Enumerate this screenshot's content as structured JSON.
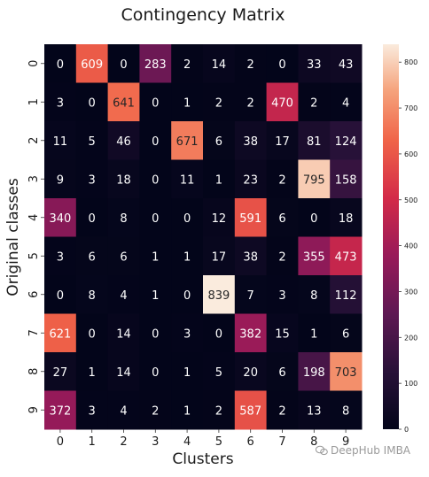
{
  "chart_data": {
    "type": "heatmap",
    "title": "Contingency Matrix",
    "xlabel": "Clusters",
    "ylabel": "Original classes",
    "x_categories": [
      "0",
      "1",
      "2",
      "3",
      "4",
      "5",
      "6",
      "7",
      "8",
      "9"
    ],
    "y_categories": [
      "0",
      "1",
      "2",
      "3",
      "4",
      "5",
      "6",
      "7",
      "8",
      "9"
    ],
    "values": [
      [
        0,
        609,
        0,
        283,
        2,
        14,
        2,
        0,
        33,
        43
      ],
      [
        3,
        0,
        641,
        0,
        1,
        2,
        2,
        470,
        2,
        4
      ],
      [
        11,
        5,
        46,
        0,
        671,
        6,
        38,
        17,
        81,
        124
      ],
      [
        9,
        3,
        18,
        0,
        11,
        1,
        23,
        2,
        795,
        158
      ],
      [
        340,
        0,
        8,
        0,
        0,
        12,
        591,
        6,
        0,
        18
      ],
      [
        3,
        6,
        6,
        1,
        1,
        17,
        38,
        2,
        355,
        473
      ],
      [
        0,
        8,
        4,
        1,
        0,
        839,
        7,
        3,
        8,
        112
      ],
      [
        621,
        0,
        14,
        0,
        3,
        0,
        382,
        15,
        1,
        6
      ],
      [
        27,
        1,
        14,
        0,
        1,
        5,
        20,
        6,
        198,
        703
      ],
      [
        372,
        3,
        4,
        2,
        1,
        2,
        587,
        2,
        13,
        8
      ]
    ],
    "colorbar": {
      "colormap": "rocket",
      "range": [
        0,
        839
      ],
      "ticks": [
        "0",
        "100",
        "200",
        "300",
        "400",
        "500",
        "600",
        "700",
        "800"
      ]
    },
    "grid": false
  },
  "watermark": {
    "text": "DeepHub IMBA",
    "icon": "wechat-icon"
  }
}
